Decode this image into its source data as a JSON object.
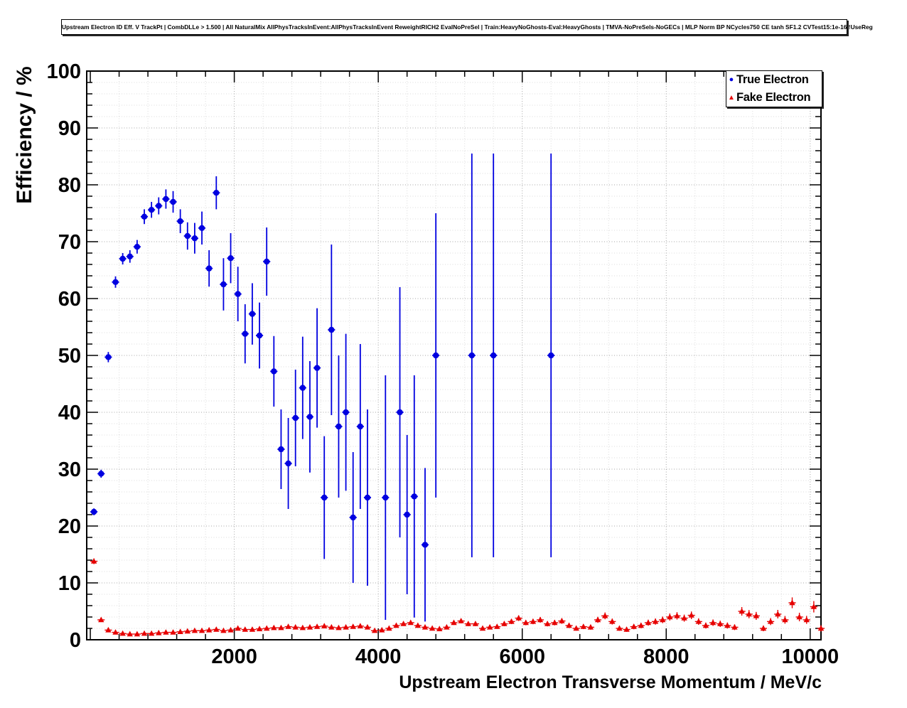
{
  "header": {
    "title": "Upstream Electron ID Eff. V TrackPt | CombDLLe > 1.500 | All NaturalMix AllPhysTracksInEvent:AllPhysTracksInEvent ReweightRICH2 EvalNoPreSel | Train:HeavyNoGhosts-Eval:HeavyGhosts | TMVA-NoPreSels-NoGECs | MLP Norm BP NCycles750 CE tanh SF1.2 CVTest15:1e-16 !UseReg"
  },
  "chart_data": {
    "type": "scatter",
    "title": "Upstream Electron ID Eff. V TrackPt",
    "xlabel": "Upstream Electron Transverse Momentum / MeV/c",
    "ylabel": "Efficiency / %",
    "xlim": [
      -50,
      10150
    ],
    "ylim": [
      0,
      100
    ],
    "x_ticks": [
      2000,
      4000,
      6000,
      8000,
      10000
    ],
    "y_ticks": [
      0,
      10,
      20,
      30,
      40,
      50,
      60,
      70,
      80,
      90,
      100
    ],
    "x_minor_step": 400,
    "y_minor_step": 2,
    "grid": "dotted, major and minor divisions",
    "legend_position": "top-right",
    "point_format": [
      "x",
      "y",
      "yerr"
    ],
    "xerr": 50,
    "series": [
      {
        "name": "True Electron",
        "marker": "circle",
        "color": "#0000e0",
        "points": [
          [
            50,
            22.5,
            0.6
          ],
          [
            150,
            29.2,
            0.7
          ],
          [
            250,
            49.7,
            0.9
          ],
          [
            350,
            62.9,
            1.0
          ],
          [
            450,
            67.0,
            1.0
          ],
          [
            550,
            67.4,
            1.1
          ],
          [
            650,
            69.1,
            1.2
          ],
          [
            750,
            74.4,
            1.3
          ],
          [
            850,
            75.6,
            1.4
          ],
          [
            950,
            76.3,
            1.5
          ],
          [
            1050,
            77.5,
            1.7
          ],
          [
            1150,
            77.0,
            1.9
          ],
          [
            1250,
            73.6,
            2.1
          ],
          [
            1350,
            71.0,
            2.4
          ],
          [
            1450,
            70.6,
            2.7
          ],
          [
            1550,
            72.4,
            2.9
          ],
          [
            1650,
            65.3,
            3.2
          ],
          [
            1750,
            78.6,
            2.9
          ],
          [
            1850,
            62.5,
            4.6
          ],
          [
            1950,
            67.1,
            4.4
          ],
          [
            2050,
            60.8,
            4.8
          ],
          [
            2150,
            53.8,
            5.2
          ],
          [
            2250,
            57.3,
            5.4
          ],
          [
            2350,
            53.5,
            5.8
          ],
          [
            2450,
            66.5,
            6.0
          ],
          [
            2550,
            47.2,
            6.2
          ],
          [
            2650,
            33.5,
            7.0
          ],
          [
            2750,
            31.0,
            8.0
          ],
          [
            2850,
            39.0,
            8.5
          ],
          [
            2950,
            44.3,
            9.0
          ],
          [
            3050,
            39.2,
            9.8
          ],
          [
            3150,
            47.8,
            10.5
          ],
          [
            3250,
            25.0,
            10.8
          ],
          [
            3350,
            54.5,
            15.0
          ],
          [
            3450,
            37.5,
            12.5
          ],
          [
            3550,
            40.0,
            13.8
          ],
          [
            3650,
            21.5,
            11.5
          ],
          [
            3750,
            37.5,
            14.5
          ],
          [
            3850,
            25.0,
            15.5
          ],
          [
            4100,
            25.0,
            21.5
          ],
          [
            4300,
            40.0,
            22.0
          ],
          [
            4400,
            22.0,
            14.0
          ],
          [
            4500,
            25.2,
            21.3
          ],
          [
            4650,
            16.7,
            13.5
          ],
          [
            4800,
            50.0,
            25.0
          ],
          [
            5300,
            50.0,
            35.5
          ],
          [
            5600,
            50.0,
            35.5
          ],
          [
            6400,
            50.0,
            35.5
          ]
        ]
      },
      {
        "name": "Fake Electron",
        "marker": "triangle",
        "color": "#e60000",
        "points": [
          [
            50,
            13.8,
            0.5
          ],
          [
            150,
            3.5,
            0.2
          ],
          [
            250,
            1.7,
            0.12
          ],
          [
            350,
            1.3,
            0.1
          ],
          [
            450,
            1.1,
            0.1
          ],
          [
            550,
            1.0,
            0.08
          ],
          [
            650,
            1.0,
            0.08
          ],
          [
            750,
            1.1,
            0.08
          ],
          [
            850,
            1.1,
            0.09
          ],
          [
            950,
            1.2,
            0.09
          ],
          [
            1050,
            1.3,
            0.1
          ],
          [
            1150,
            1.3,
            0.1
          ],
          [
            1250,
            1.4,
            0.1
          ],
          [
            1350,
            1.5,
            0.11
          ],
          [
            1450,
            1.6,
            0.12
          ],
          [
            1550,
            1.6,
            0.12
          ],
          [
            1650,
            1.7,
            0.13
          ],
          [
            1750,
            1.8,
            0.14
          ],
          [
            1850,
            1.6,
            0.14
          ],
          [
            1950,
            1.7,
            0.15
          ],
          [
            2050,
            2.0,
            0.16
          ],
          [
            2150,
            1.8,
            0.16
          ],
          [
            2250,
            1.8,
            0.17
          ],
          [
            2350,
            1.9,
            0.18
          ],
          [
            2450,
            2.0,
            0.18
          ],
          [
            2550,
            2.1,
            0.19
          ],
          [
            2650,
            2.1,
            0.2
          ],
          [
            2750,
            2.3,
            0.21
          ],
          [
            2850,
            2.2,
            0.21
          ],
          [
            2950,
            2.1,
            0.22
          ],
          [
            3050,
            2.2,
            0.23
          ],
          [
            3150,
            2.3,
            0.24
          ],
          [
            3250,
            2.4,
            0.25
          ],
          [
            3350,
            2.2,
            0.25
          ],
          [
            3450,
            2.1,
            0.26
          ],
          [
            3550,
            2.2,
            0.27
          ],
          [
            3650,
            2.3,
            0.28
          ],
          [
            3750,
            2.4,
            0.29
          ],
          [
            3850,
            2.2,
            0.29
          ],
          [
            3950,
            1.6,
            0.27
          ],
          [
            4050,
            1.7,
            0.28
          ],
          [
            4150,
            2.0,
            0.3
          ],
          [
            4250,
            2.5,
            0.33
          ],
          [
            4350,
            2.8,
            0.35
          ],
          [
            4450,
            3.0,
            0.37
          ],
          [
            4550,
            2.5,
            0.35
          ],
          [
            4650,
            2.2,
            0.34
          ],
          [
            4750,
            2.0,
            0.33
          ],
          [
            4850,
            1.9,
            0.33
          ],
          [
            4950,
            2.2,
            0.35
          ],
          [
            5050,
            3.0,
            0.4
          ],
          [
            5150,
            3.3,
            0.42
          ],
          [
            5250,
            2.8,
            0.4
          ],
          [
            5350,
            2.8,
            0.4
          ],
          [
            5450,
            2.0,
            0.36
          ],
          [
            5550,
            2.2,
            0.38
          ],
          [
            5650,
            2.3,
            0.39
          ],
          [
            5750,
            2.8,
            0.42
          ],
          [
            5850,
            3.2,
            0.45
          ],
          [
            5950,
            3.8,
            0.5
          ],
          [
            6050,
            3.0,
            0.45
          ],
          [
            6150,
            3.2,
            0.47
          ],
          [
            6250,
            3.5,
            0.5
          ],
          [
            6350,
            2.8,
            0.45
          ],
          [
            6450,
            3.0,
            0.47
          ],
          [
            6550,
            3.3,
            0.5
          ],
          [
            6650,
            2.5,
            0.44
          ],
          [
            6750,
            2.0,
            0.4
          ],
          [
            6850,
            2.3,
            0.43
          ],
          [
            6950,
            2.2,
            0.43
          ],
          [
            7050,
            3.5,
            0.53
          ],
          [
            7150,
            4.2,
            0.6
          ],
          [
            7250,
            3.2,
            0.52
          ],
          [
            7350,
            2.0,
            0.42
          ],
          [
            7450,
            1.8,
            0.4
          ],
          [
            7550,
            2.3,
            0.46
          ],
          [
            7650,
            2.5,
            0.48
          ],
          [
            7750,
            3.0,
            0.53
          ],
          [
            7850,
            3.2,
            0.55
          ],
          [
            7950,
            3.5,
            0.58
          ],
          [
            8050,
            4.0,
            0.62
          ],
          [
            8150,
            4.2,
            0.65
          ],
          [
            8250,
            3.8,
            0.62
          ],
          [
            8350,
            4.3,
            0.67
          ],
          [
            8450,
            3.2,
            0.58
          ],
          [
            8550,
            2.5,
            0.52
          ],
          [
            8650,
            3.0,
            0.57
          ],
          [
            8750,
            2.8,
            0.55
          ],
          [
            8850,
            2.5,
            0.53
          ],
          [
            8950,
            2.2,
            0.5
          ],
          [
            9050,
            5.0,
            0.75
          ],
          [
            9150,
            4.5,
            0.72
          ],
          [
            9250,
            4.2,
            0.7
          ],
          [
            9350,
            2.0,
            0.5
          ],
          [
            9450,
            3.2,
            0.62
          ],
          [
            9550,
            4.5,
            0.75
          ],
          [
            9650,
            3.5,
            0.68
          ],
          [
            9750,
            6.5,
            0.95
          ],
          [
            9850,
            4.0,
            0.75
          ],
          [
            9950,
            3.5,
            0.7
          ],
          [
            10050,
            5.8,
            1.0
          ],
          [
            10150,
            2.0,
            0.55
          ]
        ]
      }
    ]
  }
}
